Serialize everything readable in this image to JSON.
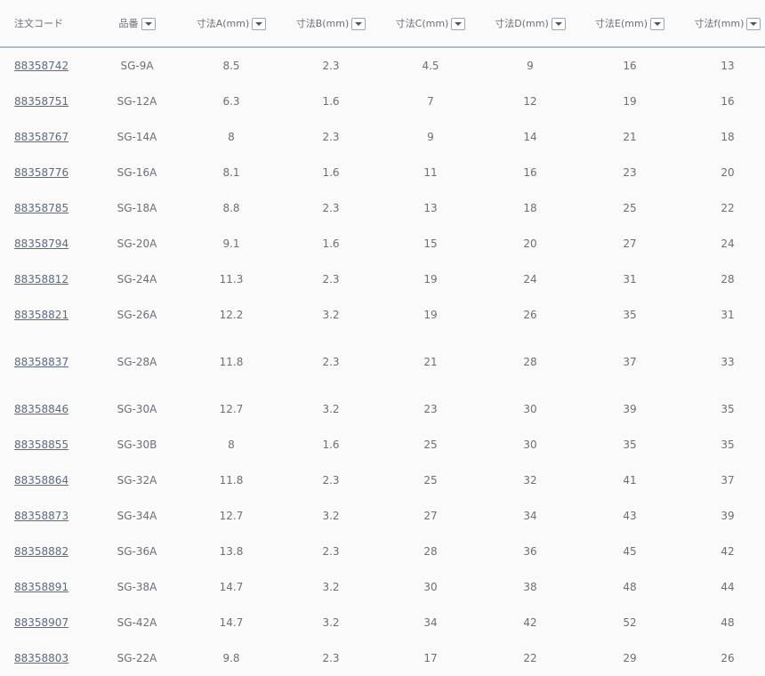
{
  "columns": [
    {
      "label": "注文コード",
      "filter": false
    },
    {
      "label": "品番",
      "filter": true
    },
    {
      "label": "寸法A(mm)",
      "filter": true
    },
    {
      "label": "寸法B(mm)",
      "filter": true
    },
    {
      "label": "寸法C(mm)",
      "filter": true
    },
    {
      "label": "寸法D(mm)",
      "filter": true
    },
    {
      "label": "寸法E(mm)",
      "filter": true
    },
    {
      "label": "寸法f(mm)",
      "filter": true
    }
  ],
  "rows": [
    [
      "88358742",
      "SG-9A",
      "8.5",
      "2.3",
      "4.5",
      "9",
      "16",
      "13"
    ],
    [
      "88358751",
      "SG-12A",
      "6.3",
      "1.6",
      "7",
      "12",
      "19",
      "16"
    ],
    [
      "88358767",
      "SG-14A",
      "8",
      "2.3",
      "9",
      "14",
      "21",
      "18"
    ],
    [
      "88358776",
      "SG-16A",
      "8.1",
      "1.6",
      "11",
      "16",
      "23",
      "20"
    ],
    [
      "88358785",
      "SG-18A",
      "8.8",
      "2.3",
      "13",
      "18",
      "25",
      "22"
    ],
    [
      "88358794",
      "SG-20A",
      "9.1",
      "1.6",
      "15",
      "20",
      "27",
      "24"
    ],
    [
      "88358812",
      "SG-24A",
      "11.3",
      "2.3",
      "19",
      "24",
      "31",
      "28"
    ],
    [
      "88358821",
      "SG-26A",
      "12.2",
      "3.2",
      "19",
      "26",
      "35",
      "31"
    ],
    [
      "88358837",
      "SG-28A",
      "11.8",
      "2.3",
      "21",
      "28",
      "37",
      "33"
    ],
    [
      "88358846",
      "SG-30A",
      "12.7",
      "3.2",
      "23",
      "30",
      "39",
      "35"
    ],
    [
      "88358855",
      "SG-30B",
      "8",
      "1.6",
      "25",
      "30",
      "35",
      "35"
    ],
    [
      "88358864",
      "SG-32A",
      "11.8",
      "2.3",
      "25",
      "32",
      "41",
      "37"
    ],
    [
      "88358873",
      "SG-34A",
      "12.7",
      "3.2",
      "27",
      "34",
      "43",
      "39"
    ],
    [
      "88358882",
      "SG-36A",
      "13.8",
      "2.3",
      "28",
      "36",
      "45",
      "42"
    ],
    [
      "88358891",
      "SG-38A",
      "14.7",
      "3.2",
      "30",
      "38",
      "48",
      "44"
    ],
    [
      "88358907",
      "SG-42A",
      "14.7",
      "3.2",
      "34",
      "42",
      "52",
      "48"
    ],
    [
      "88358803",
      "SG-22A",
      "9.8",
      "2.3",
      "17",
      "22",
      "29",
      "26"
    ]
  ]
}
